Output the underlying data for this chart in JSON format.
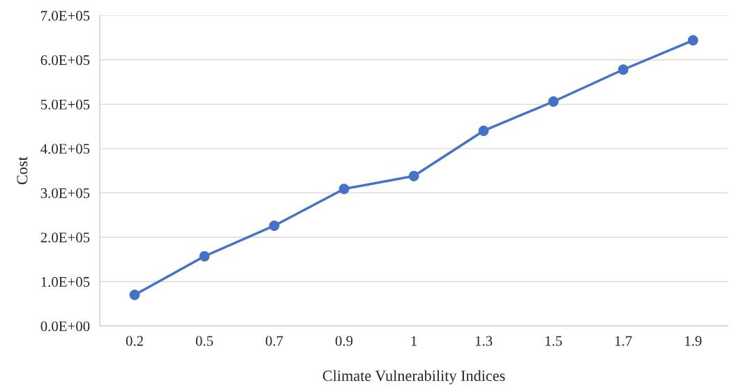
{
  "chart_data": {
    "type": "line",
    "xlabel": "Climate Vulnerability Indices",
    "ylabel": "Cost",
    "categories": [
      "0.2",
      "0.5",
      "0.7",
      "0.9",
      "1",
      "1.3",
      "1.5",
      "1.7",
      "1.9"
    ],
    "series": [
      {
        "color": "#4472c4",
        "values": [
          70000,
          157000,
          226000,
          309000,
          338000,
          440000,
          506000,
          578000,
          644000
        ]
      }
    ],
    "ylim": [
      0,
      700000
    ],
    "yticks": [
      {
        "value": 0,
        "label": "0.0E+00"
      },
      {
        "value": 100000,
        "label": "1.0E+05"
      },
      {
        "value": 200000,
        "label": "2.0E+05"
      },
      {
        "value": 300000,
        "label": "3.0E+05"
      },
      {
        "value": 400000,
        "label": "4.0E+05"
      },
      {
        "value": 500000,
        "label": "5.0E+05"
      },
      {
        "value": 600000,
        "label": "6.0E+05"
      },
      {
        "value": 700000,
        "label": "7.0E+05"
      }
    ],
    "grid": "y",
    "marker": "circle",
    "line_style": "solid"
  }
}
